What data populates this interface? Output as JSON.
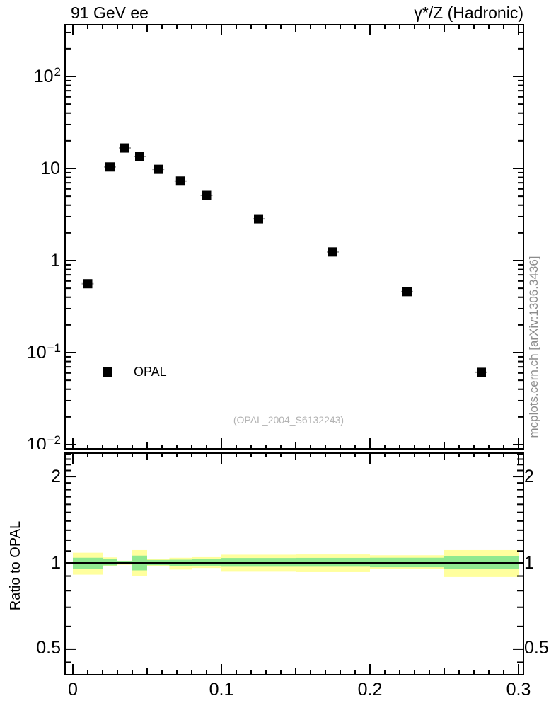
{
  "figure": {
    "title_left": "91 GeV ee",
    "title_right": "γ*/Z (Hadronic)",
    "watermark": "(OPAL_2004_S6132243)",
    "side_note": "mcplots.cern.ch [arXiv:1306.3436]",
    "ratio_ylabel": "Ratio to OPAL"
  },
  "legend": {
    "label": "OPAL",
    "marker": "filled-square"
  },
  "colors": {
    "marker": "#000000",
    "band_outer": "#ffff9e",
    "band_inner": "#8fe98f",
    "ref_line": "#000000",
    "error_bar": "#a0a0a0",
    "frame": "#000000"
  },
  "chart_data": {
    "type": "scatter",
    "title": "91 GeV ee — γ*/Z (Hadronic)",
    "yscale": "log",
    "xlim": [
      -0.0052,
      0.3033
    ],
    "ylim": [
      0.0088,
      364
    ],
    "grid": false,
    "legend_position": "inside-left",
    "series": [
      {
        "name": "OPAL",
        "marker": "filled-square",
        "color": "#000000",
        "x": [
          0.01,
          0.025,
          0.035,
          0.045,
          0.0575,
          0.0725,
          0.09,
          0.125,
          0.175,
          0.225,
          0.275
        ],
        "y": [
          0.56,
          10.4,
          16.7,
          13.5,
          9.8,
          7.3,
          5.1,
          2.84,
          1.24,
          0.46,
          0.061
        ]
      }
    ],
    "x_ticks": {
      "major_values": [
        0,
        0.1,
        0.2,
        0.3
      ],
      "labels": [
        "0",
        "0.1",
        "0.2",
        "0.3"
      ],
      "minor_step": 0.01,
      "medium_step": 0.05
    },
    "y_tick_labels": [
      {
        "base": "10",
        "exp": "2",
        "value": 100
      },
      {
        "base": "10",
        "exp": "",
        "value": 10
      },
      {
        "base": "1",
        "exp": "",
        "value": 1
      },
      {
        "base": "10",
        "exp": "−1",
        "value": 0.1
      },
      {
        "base": "10",
        "exp": "−2",
        "value": 0.01
      }
    ],
    "ratio_panel": {
      "ylabel": "Ratio to OPAL",
      "yscale": "log",
      "ylim": [
        0.407,
        2.414
      ],
      "ref_line": 1,
      "tick_values": [
        2,
        1,
        0.5
      ],
      "tick_labels": [
        "2",
        "1",
        "0.5"
      ],
      "bands": [
        {
          "x0": 0.0,
          "x1": 0.02,
          "outer": [
            0.91,
            1.085
          ],
          "inner": [
            0.955,
            1.042
          ]
        },
        {
          "x0": 0.02,
          "x1": 0.03,
          "outer": [
            0.972,
            1.045
          ],
          "inner": [
            0.98,
            1.03
          ]
        },
        {
          "x0": 0.03,
          "x1": 0.04,
          "outer": [
            0.985,
            1.018
          ],
          "inner": [
            0.99,
            1.012
          ]
        },
        {
          "x0": 0.04,
          "x1": 0.05,
          "outer": [
            0.9,
            1.108
          ],
          "inner": [
            0.942,
            1.06
          ]
        },
        {
          "x0": 0.05,
          "x1": 0.065,
          "outer": [
            0.976,
            1.03
          ],
          "inner": [
            0.982,
            1.024
          ]
        },
        {
          "x0": 0.065,
          "x1": 0.08,
          "outer": [
            0.948,
            1.042
          ],
          "inner": [
            0.972,
            1.026
          ]
        },
        {
          "x0": 0.08,
          "x1": 0.1,
          "outer": [
            0.96,
            1.047
          ],
          "inner": [
            0.978,
            1.029
          ]
        },
        {
          "x0": 0.1,
          "x1": 0.15,
          "outer": [
            0.932,
            1.068
          ],
          "inner": [
            0.97,
            1.04
          ]
        },
        {
          "x0": 0.15,
          "x1": 0.2,
          "outer": [
            0.929,
            1.07
          ],
          "inner": [
            0.97,
            1.041
          ]
        },
        {
          "x0": 0.2,
          "x1": 0.25,
          "outer": [
            0.952,
            1.063
          ],
          "inner": [
            0.966,
            1.042
          ]
        },
        {
          "x0": 0.25,
          "x1": 0.3,
          "outer": [
            0.893,
            1.108
          ],
          "inner": [
            0.95,
            1.055
          ]
        }
      ]
    }
  }
}
